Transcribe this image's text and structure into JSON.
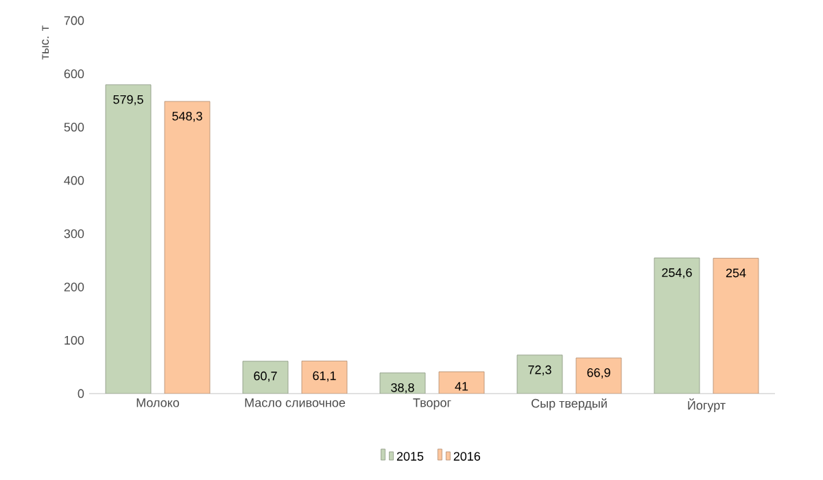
{
  "chart_data": {
    "type": "bar",
    "ylabel": "тыс. т",
    "categories": [
      "Молоко",
      "Масло сливочное",
      "Творог",
      "Сыр твердый",
      "Йогурт"
    ],
    "series": [
      {
        "name": "2015",
        "color": "#c4d5b7",
        "values": [
          579.5,
          60.7,
          38.8,
          72.3,
          254.6
        ],
        "value_labels": [
          "579,5",
          "60,7",
          "38,8",
          "72,3",
          "254,6"
        ]
      },
      {
        "name": "2016",
        "color": "#fcc69d",
        "values": [
          548.3,
          61.1,
          41,
          66.9,
          254
        ],
        "value_labels": [
          "548,3",
          "61,1",
          "41",
          "66,9",
          "254"
        ]
      }
    ],
    "ylim": [
      0,
      700
    ],
    "yticks": [
      0,
      100,
      200,
      300,
      400,
      500,
      600,
      700
    ],
    "legend": "bottom"
  }
}
